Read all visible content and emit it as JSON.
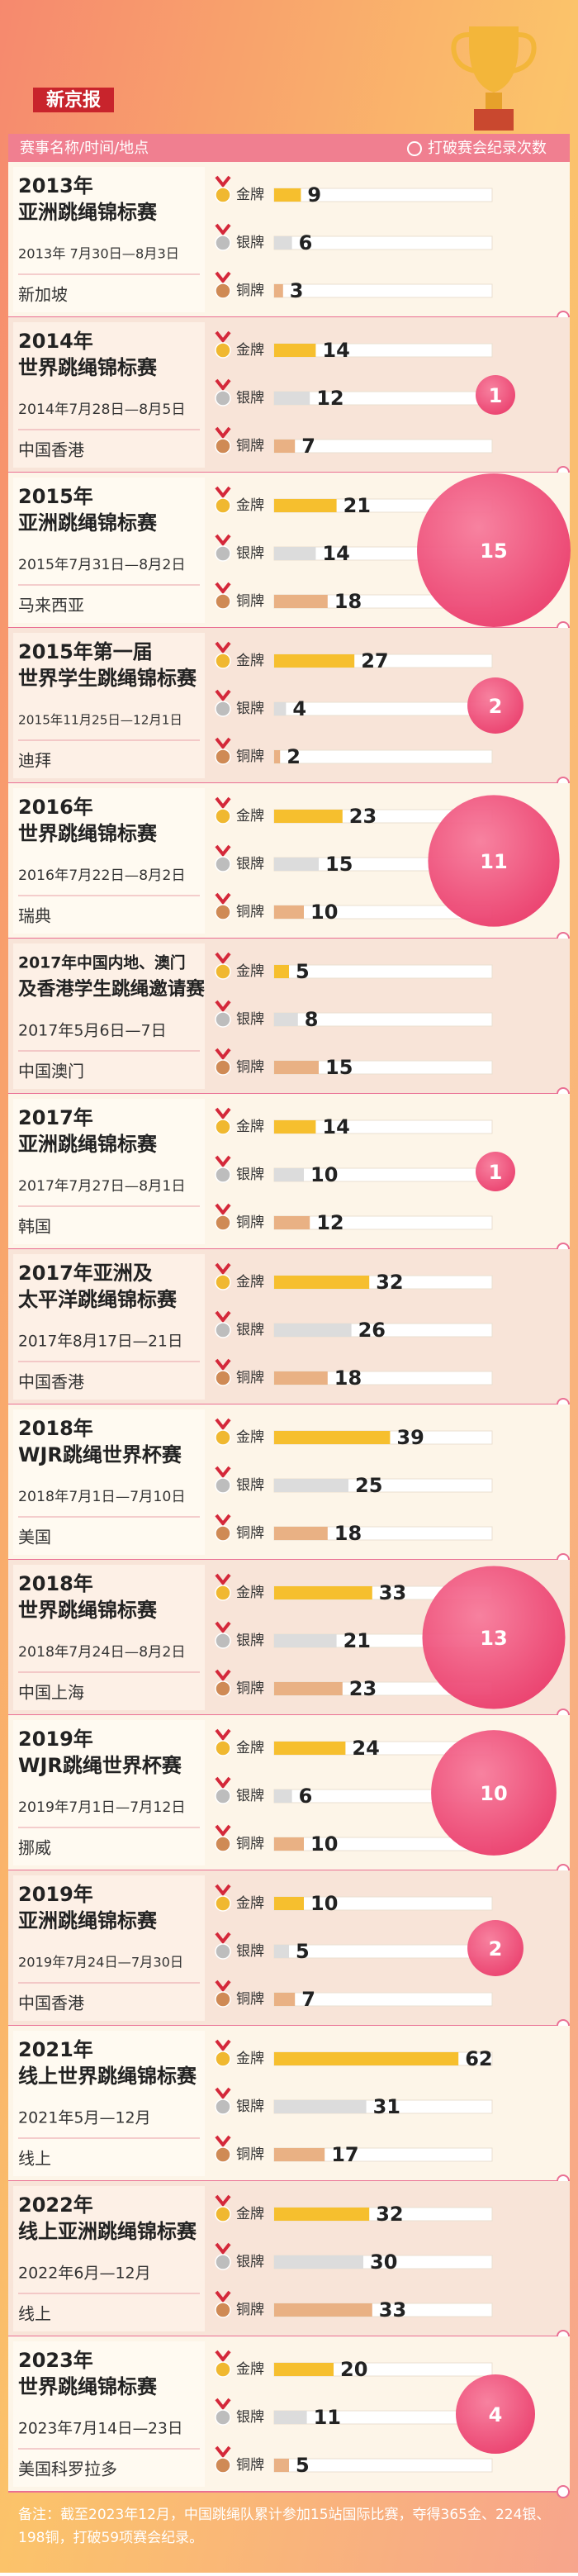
{
  "header": {
    "brand": "新京报",
    "col_left": "赛事名称/时间/地点",
    "col_right": "打破赛会纪录次数"
  },
  "medals": [
    "金牌",
    "银牌",
    "铜牌"
  ],
  "events": [
    {
      "name": [
        "2013年",
        "亚洲跳绳锦标赛"
      ],
      "date": "2013年 7月30日—8月3日",
      "place": "新加坡",
      "values": [
        9,
        6,
        3
      ],
      "records": null
    },
    {
      "name": [
        "2014年",
        "世界跳绳锦标赛"
      ],
      "date": "2014年7月28日—8月5日",
      "place": "中国香港",
      "values": [
        14,
        12,
        7
      ],
      "records": 1
    },
    {
      "name": [
        "2015年",
        "亚洲跳绳锦标赛"
      ],
      "date": "2015年7月31日—8月2日",
      "place": "马来西亚",
      "values": [
        21,
        14,
        18
      ],
      "records": 15
    },
    {
      "name": [
        "2015年第一届",
        "世界学生跳绳锦标赛"
      ],
      "date": "2015年11月25日—12月1日",
      "place": "迪拜",
      "values": [
        27,
        4,
        2
      ],
      "records": 2
    },
    {
      "name": [
        "2016年",
        "世界跳绳锦标赛"
      ],
      "date": "2016年7月22日—8月2日",
      "place": "瑞典",
      "values": [
        23,
        15,
        10
      ],
      "records": 11
    },
    {
      "name": [
        "2017年中国内地、澳门",
        "及香港学生跳绳邀请赛"
      ],
      "date": "2017年5月6日—7日",
      "place": "中国澳门",
      "values": [
        5,
        8,
        15
      ],
      "records": null
    },
    {
      "name": [
        "2017年",
        "亚洲跳绳锦标赛"
      ],
      "date": "2017年7月27日—8月1日",
      "place": "韩国",
      "values": [
        14,
        10,
        12
      ],
      "records": 1
    },
    {
      "name": [
        "2017年亚洲及",
        "太平洋跳绳锦标赛"
      ],
      "date": "2017年8月17日—21日",
      "place": "中国香港",
      "values": [
        32,
        26,
        18
      ],
      "records": null
    },
    {
      "name": [
        "2018年",
        "WJR跳绳世界杯赛"
      ],
      "date": "2018年7月1日—7月10日",
      "place": "美国",
      "values": [
        39,
        25,
        18
      ],
      "records": null
    },
    {
      "name": [
        "2018年",
        "世界跳绳锦标赛"
      ],
      "date": "2018年7月24日—8月2日",
      "place": "中国上海",
      "values": [
        33,
        21,
        23
      ],
      "records": 13
    },
    {
      "name": [
        "2019年",
        "WJR跳绳世界杯赛"
      ],
      "date": "2019年7月1日—7月12日",
      "place": "挪威",
      "values": [
        24,
        6,
        10
      ],
      "records": 10
    },
    {
      "name": [
        "2019年",
        "亚洲跳绳锦标赛"
      ],
      "date": "2019年7月24日—7月30日",
      "place": "中国香港",
      "values": [
        10,
        5,
        7
      ],
      "records": 2
    },
    {
      "name": [
        "2021年",
        "线上世界跳绳锦标赛"
      ],
      "date": "2021年5月—12月",
      "place": "线上",
      "values": [
        62,
        31,
        17
      ],
      "records": null
    },
    {
      "name": [
        "2022年",
        "线上亚洲跳绳锦标赛"
      ],
      "date": "2022年6月—12月",
      "place": "线上",
      "values": [
        32,
        30,
        33
      ],
      "records": null
    },
    {
      "name": [
        "2023年",
        "世界跳绳锦标赛"
      ],
      "date": "2023年7月14日—23日",
      "place": "美国科罗拉多",
      "values": [
        20,
        11,
        5
      ],
      "records": 4
    }
  ],
  "note": "备注：截至2023年12月，中国跳绳队累计参加15站国际比赛，夺得365金、224银、198铜，打破59项赛会纪录。"
}
